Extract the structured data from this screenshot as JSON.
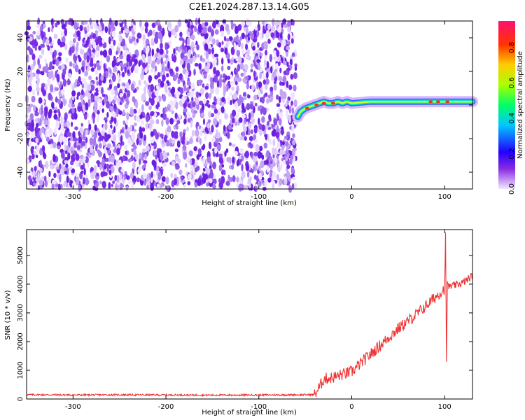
{
  "title": "C2E1.2024.287.13.14.G05",
  "chart_data": [
    {
      "type": "heatmap",
      "xlabel": "Height of straight line (km)",
      "ylabel": "Frequency (Hz)",
      "xlim": [
        -350,
        130
      ],
      "ylim": [
        -50,
        50
      ],
      "xticks": [
        -300,
        -200,
        -100,
        0,
        100
      ],
      "yticks": [
        -40,
        -20,
        0,
        20,
        40
      ],
      "noise_region_x": [
        -350,
        -60
      ],
      "signal_track": {
        "x": [
          -58,
          -55,
          -50,
          -45,
          -40,
          -35,
          -30,
          -25,
          -20,
          -15,
          -10,
          -5,
          0,
          20,
          40,
          60,
          80,
          100,
          130
        ],
        "y": [
          -7,
          -4,
          -2,
          -1,
          0,
          1,
          2,
          1,
          1,
          2,
          1,
          2,
          1,
          2,
          2,
          2,
          2,
          2,
          2
        ]
      },
      "colorbar": {
        "label": "Normalized spectral amplitude",
        "ticks": [
          0.0,
          0.2,
          0.4,
          0.6,
          0.8
        ],
        "range": [
          0,
          0.95
        ]
      }
    },
    {
      "type": "line",
      "xlabel": "Height of straight line (km)",
      "ylabel": "SNR (10 * v/v)",
      "xlim": [
        -350,
        130
      ],
      "ylim": [
        0,
        5900
      ],
      "xticks": [
        -300,
        -200,
        -100,
        0,
        100
      ],
      "yticks": [
        0,
        1000,
        2000,
        3000,
        4000,
        5000
      ],
      "series": [
        {
          "x": [
            -350,
            -300,
            -250,
            -200,
            -150,
            -100,
            -60,
            -40,
            -35,
            -30,
            -20,
            -10,
            0,
            10,
            20,
            30,
            40,
            50,
            60,
            70,
            80,
            90,
            95,
            100,
            101,
            102,
            103,
            104,
            110,
            120,
            130
          ],
          "y": [
            150,
            140,
            145,
            140,
            135,
            140,
            145,
            150,
            400,
            700,
            750,
            850,
            950,
            1250,
            1550,
            1850,
            2150,
            2450,
            2700,
            2950,
            3250,
            3550,
            3700,
            3850,
            5800,
            1300,
            4100,
            3900,
            3950,
            4050,
            4300
          ]
        }
      ],
      "color": "#ee3333"
    }
  ]
}
